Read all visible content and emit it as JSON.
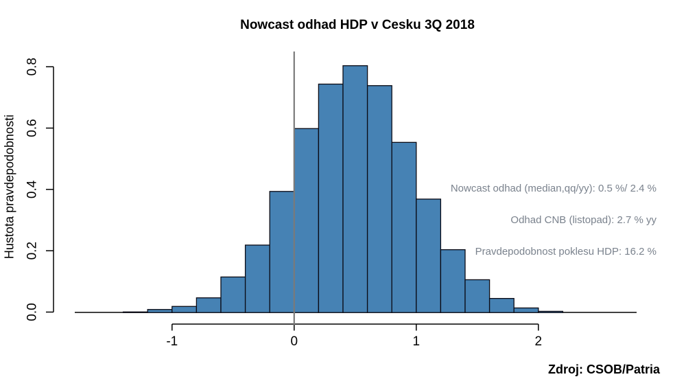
{
  "chart_data": {
    "type": "bar",
    "subtype": "histogram",
    "title": "Nowcast odhad HDP v Cesku 3Q 2018",
    "xlabel": "",
    "ylabel": "Hustota pravdepodobnosti",
    "bin_start": -1.4,
    "bin_width": 0.2,
    "bin_edges": [
      -1.4,
      -1.2,
      -1.0,
      -0.8,
      -0.6,
      -0.4,
      -0.2,
      0.0,
      0.2,
      0.4,
      0.6,
      0.8,
      1.0,
      1.2,
      1.4,
      1.6,
      1.8,
      2.0,
      2.2
    ],
    "densities": [
      0.002,
      0.01,
      0.02,
      0.048,
      0.116,
      0.22,
      0.395,
      0.6,
      0.745,
      0.805,
      0.74,
      0.555,
      0.37,
      0.205,
      0.107,
      0.046,
      0.015,
      0.004
    ],
    "x_ticks": [
      -1,
      0,
      1,
      2
    ],
    "x_tick_labels": [
      "-1",
      "0",
      "1",
      "2"
    ],
    "y_ticks": [
      0.0,
      0.2,
      0.4,
      0.6,
      0.8
    ],
    "y_tick_labels": [
      "0.0",
      "0.2",
      "0.4",
      "0.6",
      "0.8"
    ],
    "xlim": [
      -1.93,
      2.97
    ],
    "ylim": [
      0,
      0.85
    ],
    "grid": false,
    "legend": null,
    "vline_x": 0,
    "annotations": [
      "Nowcast odhad (median,qq/yy): 0.5 %/ 2.4 %",
      "Odhad CNB (listopad): 2.7 % yy",
      "Pravdepodobnost poklesu HDP: 16.2 %"
    ]
  },
  "source": {
    "label": "Zdroj: CSOB/Patria"
  },
  "colors": {
    "background": "#FFFFFF",
    "bar_fill": "#4682B4",
    "bar_border": "#0A0A14",
    "axis": "#000000",
    "tick_label": "#000000",
    "zero_line": "#7A7A7A",
    "annotation_text": "#7A828D",
    "title_text": "#000000"
  }
}
